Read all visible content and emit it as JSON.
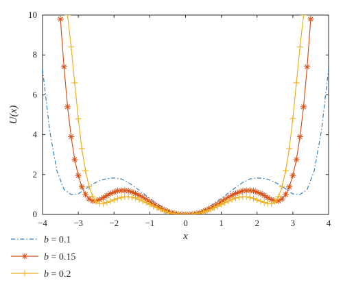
{
  "chart_data": {
    "type": "line",
    "xlabel": "x",
    "ylabel": "U(x)",
    "xlim": [
      -4,
      4
    ],
    "ylim": [
      0,
      10
    ],
    "x_ticks": [
      -4,
      -3,
      -2,
      -1,
      0,
      1,
      2,
      3,
      4
    ],
    "y_ticks": [
      0,
      2,
      4,
      6,
      8,
      10
    ],
    "x_tick_labels": [
      "−4",
      "−3",
      "−2",
      "−1",
      "0",
      "1",
      "2",
      "3",
      "4"
    ],
    "y_tick_labels": [
      "0",
      "2",
      "4",
      "6",
      "8",
      "10"
    ],
    "grid": false,
    "legend_position": "bottom-left (below plot)",
    "series": [
      {
        "name": "b = 0.1",
        "legend_var": "b",
        "legend_value": " = 0.1",
        "color": "#2e7ebf",
        "line_style": "dash-dot",
        "marker": "none",
        "x": [
          -4.0,
          -3.8,
          -3.6,
          -3.4,
          -3.2,
          -3.0,
          -2.8,
          -2.6,
          -2.4,
          -2.2,
          -2.0,
          -1.8,
          -1.6,
          -1.4,
          -1.2,
          -1.0,
          -0.8,
          -0.6,
          -0.4,
          -0.2,
          0.0,
          0.2,
          0.4,
          0.6,
          0.8,
          1.0,
          1.2,
          1.4,
          1.6,
          1.8,
          2.0,
          2.2,
          2.4,
          2.6,
          2.8,
          3.0,
          3.2,
          3.4,
          3.6,
          3.8,
          4.0
        ],
        "y": [
          7.3,
          4.2,
          2.2,
          1.25,
          1.0,
          1.03,
          1.28,
          1.52,
          1.7,
          1.8,
          1.83,
          1.78,
          1.6,
          1.35,
          1.08,
          0.8,
          0.55,
          0.32,
          0.15,
          0.04,
          0.0,
          0.04,
          0.15,
          0.32,
          0.55,
          0.8,
          1.08,
          1.35,
          1.6,
          1.78,
          1.83,
          1.8,
          1.7,
          1.52,
          1.28,
          1.03,
          1.0,
          1.25,
          2.2,
          4.2,
          7.3
        ]
      },
      {
        "name": "b = 0.15",
        "legend_var": "b",
        "legend_value": " = 0.15",
        "color": "#d95319",
        "line_style": "solid",
        "marker": "asterisk",
        "x": [
          -3.5,
          -3.4,
          -3.3,
          -3.2,
          -3.1,
          -3.0,
          -2.9,
          -2.8,
          -2.7,
          -2.6,
          -2.5,
          -2.4,
          -2.3,
          -2.2,
          -2.1,
          -2.0,
          -1.9,
          -1.8,
          -1.7,
          -1.6,
          -1.5,
          -1.4,
          -1.3,
          -1.2,
          -1.1,
          -1.0,
          -0.9,
          -0.8,
          -0.7,
          -0.6,
          -0.5,
          -0.4,
          -0.3,
          -0.2,
          -0.1,
          0.0,
          0.1,
          0.2,
          0.3,
          0.4,
          0.5,
          0.6,
          0.7,
          0.8,
          0.9,
          1.0,
          1.1,
          1.2,
          1.3,
          1.4,
          1.5,
          1.6,
          1.7,
          1.8,
          1.9,
          2.0,
          2.1,
          2.2,
          2.3,
          2.4,
          2.5,
          2.6,
          2.7,
          2.8,
          2.9,
          3.0,
          3.1,
          3.2,
          3.3,
          3.4,
          3.5
        ],
        "y": [
          9.8,
          7.4,
          5.4,
          3.9,
          2.75,
          1.95,
          1.38,
          1.0,
          0.78,
          0.68,
          0.68,
          0.74,
          0.84,
          0.95,
          1.05,
          1.12,
          1.18,
          1.2,
          1.2,
          1.18,
          1.12,
          1.05,
          0.96,
          0.86,
          0.75,
          0.64,
          0.53,
          0.42,
          0.32,
          0.23,
          0.15,
          0.09,
          0.05,
          0.02,
          0.005,
          0.0,
          0.005,
          0.02,
          0.05,
          0.09,
          0.15,
          0.23,
          0.32,
          0.42,
          0.53,
          0.64,
          0.75,
          0.86,
          0.96,
          1.05,
          1.12,
          1.18,
          1.2,
          1.2,
          1.18,
          1.12,
          1.05,
          0.95,
          0.84,
          0.74,
          0.68,
          0.68,
          0.78,
          1.0,
          1.38,
          1.95,
          2.75,
          3.9,
          5.4,
          7.4,
          9.8
        ]
      },
      {
        "name": "b = 0.2",
        "legend_var": "b",
        "legend_value": " = 0.2",
        "color": "#edb120",
        "line_style": "solid",
        "marker": "plus",
        "x": [
          -3.3,
          -3.2,
          -3.1,
          -3.0,
          -2.9,
          -2.8,
          -2.7,
          -2.6,
          -2.5,
          -2.4,
          -2.3,
          -2.2,
          -2.1,
          -2.0,
          -1.9,
          -1.8,
          -1.7,
          -1.6,
          -1.5,
          -1.4,
          -1.3,
          -1.2,
          -1.1,
          -1.0,
          -0.9,
          -0.8,
          -0.7,
          -0.6,
          -0.5,
          -0.4,
          -0.3,
          -0.2,
          -0.1,
          0.0,
          0.1,
          0.2,
          0.3,
          0.4,
          0.5,
          0.6,
          0.7,
          0.8,
          0.9,
          1.0,
          1.1,
          1.2,
          1.3,
          1.4,
          1.5,
          1.6,
          1.7,
          1.8,
          1.9,
          2.0,
          2.1,
          2.2,
          2.3,
          2.4,
          2.5,
          2.6,
          2.7,
          2.8,
          2.9,
          3.0,
          3.1,
          3.2,
          3.3
        ],
        "y": [
          10.0,
          8.4,
          6.6,
          4.8,
          3.3,
          2.2,
          1.4,
          0.9,
          0.65,
          0.55,
          0.55,
          0.6,
          0.66,
          0.73,
          0.8,
          0.85,
          0.88,
          0.88,
          0.86,
          0.82,
          0.75,
          0.67,
          0.59,
          0.5,
          0.41,
          0.33,
          0.25,
          0.18,
          0.12,
          0.07,
          0.04,
          0.015,
          0.004,
          0.0,
          0.004,
          0.015,
          0.04,
          0.07,
          0.12,
          0.18,
          0.25,
          0.33,
          0.41,
          0.5,
          0.59,
          0.67,
          0.75,
          0.82,
          0.86,
          0.88,
          0.88,
          0.85,
          0.8,
          0.73,
          0.66,
          0.6,
          0.55,
          0.55,
          0.65,
          0.9,
          1.4,
          2.2,
          3.3,
          4.8,
          6.6,
          8.4,
          10.0
        ]
      }
    ]
  }
}
